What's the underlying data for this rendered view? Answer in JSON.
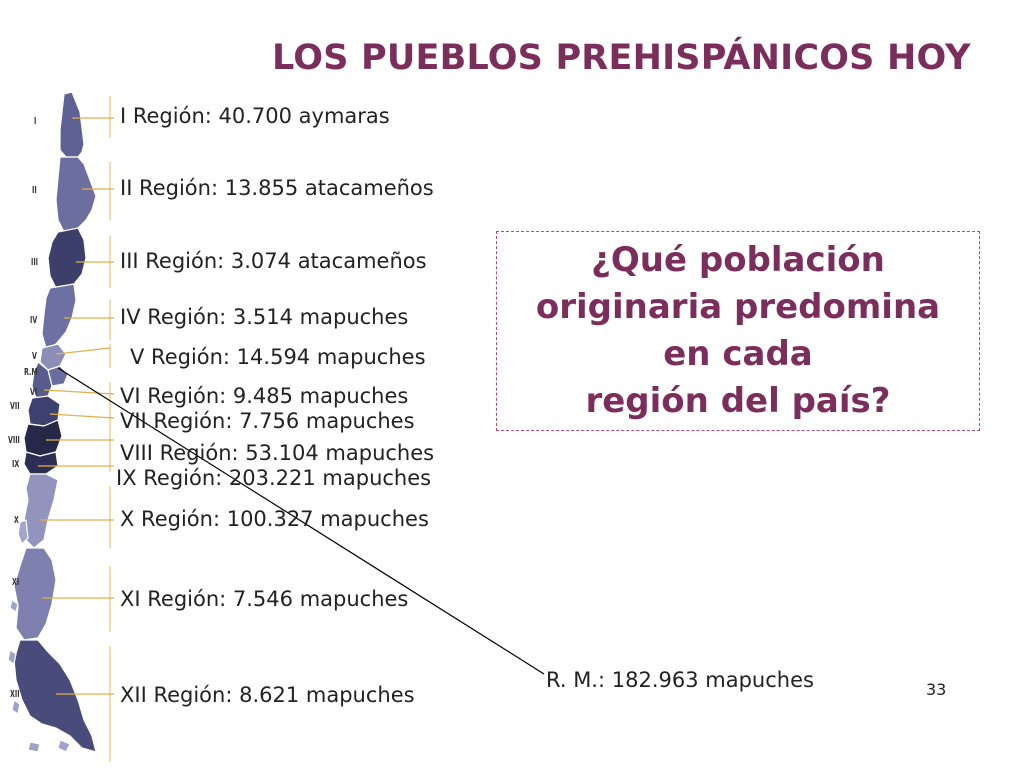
{
  "slide": {
    "title": "LOS PUEBLOS PREHISPÁNICOS HOY",
    "number": "33"
  },
  "regions": [
    {
      "numeral": "I",
      "label": "I Región: 40.700 aymaras"
    },
    {
      "numeral": "II",
      "label": "II Región: 13.855 atacameños"
    },
    {
      "numeral": "III",
      "label": "III Región: 3.074 atacameños"
    },
    {
      "numeral": "IV",
      "label": "IV Región: 3.514 mapuches"
    },
    {
      "numeral": "V",
      "label": "V Región: 14.594 mapuches"
    },
    {
      "numeral": "R.M",
      "label": "R. M.: 182.963 mapuches"
    },
    {
      "numeral": "VI",
      "label": "VI Región: 9.485 mapuches"
    },
    {
      "numeral": "VII",
      "label": "VII Región: 7.756 mapuches"
    },
    {
      "numeral": "VIII",
      "label": "VIII Región: 53.104 mapuches"
    },
    {
      "numeral": "IX",
      "label": "IX Región: 203.221 mapuches"
    },
    {
      "numeral": "X",
      "label": "X Región: 100.327 mapuches"
    },
    {
      "numeral": "XI",
      "label": "XI Región: 7.546 mapuches"
    },
    {
      "numeral": "XII",
      "label": "XII Región: 8.621 mapuches"
    }
  ],
  "question": {
    "line1": "¿Qué población",
    "line2": "originaria predomina",
    "line3": "en cada",
    "line4": "región del país?"
  },
  "colors": {
    "title": "#7b2d5b",
    "box_border": "#b14a77",
    "map_dark": "#2e2f57",
    "map_mid": "#5a5c8f",
    "map_light": "#8b8db7",
    "leader": "#e0b04a"
  }
}
